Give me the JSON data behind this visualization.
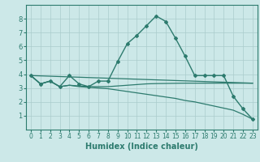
{
  "bg_color": "#cce8e8",
  "line_color": "#2d7b6e",
  "grid_color": "#aacccc",
  "xlabel": "Humidex (Indice chaleur)",
  "xlabel_fontsize": 7,
  "tick_fontsize": 6,
  "xlim": [
    -0.5,
    23.5
  ],
  "ylim": [
    0,
    9
  ],
  "yticks": [
    1,
    2,
    3,
    4,
    5,
    6,
    7,
    8
  ],
  "xticks": [
    0,
    1,
    2,
    3,
    4,
    5,
    6,
    7,
    8,
    9,
    10,
    11,
    12,
    13,
    14,
    15,
    16,
    17,
    18,
    19,
    20,
    21,
    22,
    23
  ],
  "series": [
    {
      "x": [
        0,
        1,
        2,
        3,
        4,
        5,
        6,
        7,
        8,
        9,
        10,
        11,
        12,
        13,
        14,
        15,
        16,
        17,
        18,
        19,
        20,
        21,
        22,
        23
      ],
      "y": [
        3.9,
        3.3,
        3.5,
        3.1,
        3.9,
        3.3,
        3.1,
        3.5,
        3.5,
        4.9,
        6.2,
        6.8,
        7.5,
        8.2,
        7.8,
        6.6,
        5.3,
        3.9,
        3.9,
        3.9,
        3.9,
        2.4,
        1.5,
        0.75
      ],
      "marker": "D",
      "markersize": 2,
      "linewidth": 1.0
    },
    {
      "x": [
        0,
        1,
        2,
        3,
        4,
        5,
        6,
        7,
        8,
        9,
        10,
        11,
        12,
        13,
        14,
        15,
        16,
        17,
        18,
        19,
        20,
        21,
        22,
        23
      ],
      "y": [
        3.9,
        3.3,
        3.5,
        3.1,
        3.2,
        3.15,
        3.1,
        3.1,
        3.1,
        3.15,
        3.2,
        3.25,
        3.3,
        3.32,
        3.33,
        3.34,
        3.35,
        3.35,
        3.35,
        3.35,
        3.35,
        3.35,
        3.35,
        3.35
      ],
      "marker": null,
      "markersize": 0,
      "linewidth": 0.9
    },
    {
      "x": [
        0,
        1,
        2,
        3,
        4,
        5,
        6,
        7,
        8,
        9,
        10,
        11,
        12,
        13,
        14,
        15,
        16,
        17,
        18,
        19,
        20,
        21,
        22,
        23
      ],
      "y": [
        3.9,
        3.3,
        3.5,
        3.1,
        3.2,
        3.1,
        3.05,
        3.0,
        2.95,
        2.85,
        2.75,
        2.65,
        2.55,
        2.45,
        2.35,
        2.25,
        2.1,
        2.0,
        1.85,
        1.7,
        1.55,
        1.4,
        1.1,
        0.75
      ],
      "marker": null,
      "markersize": 0,
      "linewidth": 0.9
    },
    {
      "x": [
        0,
        23
      ],
      "y": [
        3.9,
        3.35
      ],
      "marker": null,
      "markersize": 0,
      "linewidth": 0.9
    }
  ]
}
